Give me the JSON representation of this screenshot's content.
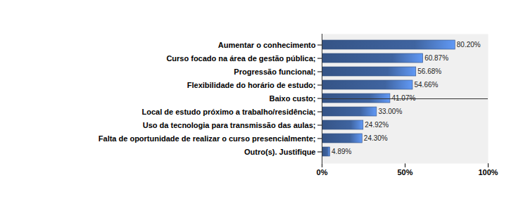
{
  "chart_data": {
    "type": "bar",
    "orientation": "horizontal",
    "categories": [
      "Aumentar o conhecimento",
      "Curso focado na área de gestão pública;",
      "Progressão funcional;",
      "Flexibilidade do horário de estudo;",
      "Baixo custo;",
      "Local de estudo próximo a trabalho/residência;",
      "Uso da tecnologia para transmissão das aulas;",
      "Falta de oportunidade de realizar o curso presencialmente;",
      "Outro(s). Justifique"
    ],
    "values": [
      80.2,
      60.87,
      56.68,
      54.66,
      41.07,
      33.0,
      24.92,
      24.3,
      4.89
    ],
    "value_labels": [
      "80.20%",
      "60.87%",
      "56.68%",
      "54.66%",
      "41.07%",
      "33.00%",
      "24.92%",
      "24.30%",
      "4.89%"
    ],
    "data_labels": true,
    "color": "#3f64a0",
    "xlim": [
      0,
      100
    ],
    "xticks": [
      {
        "value": 0,
        "label": "0%"
      },
      {
        "value": 50,
        "label": "50%"
      },
      {
        "value": 100,
        "label": "100%"
      }
    ],
    "grid": false
  }
}
